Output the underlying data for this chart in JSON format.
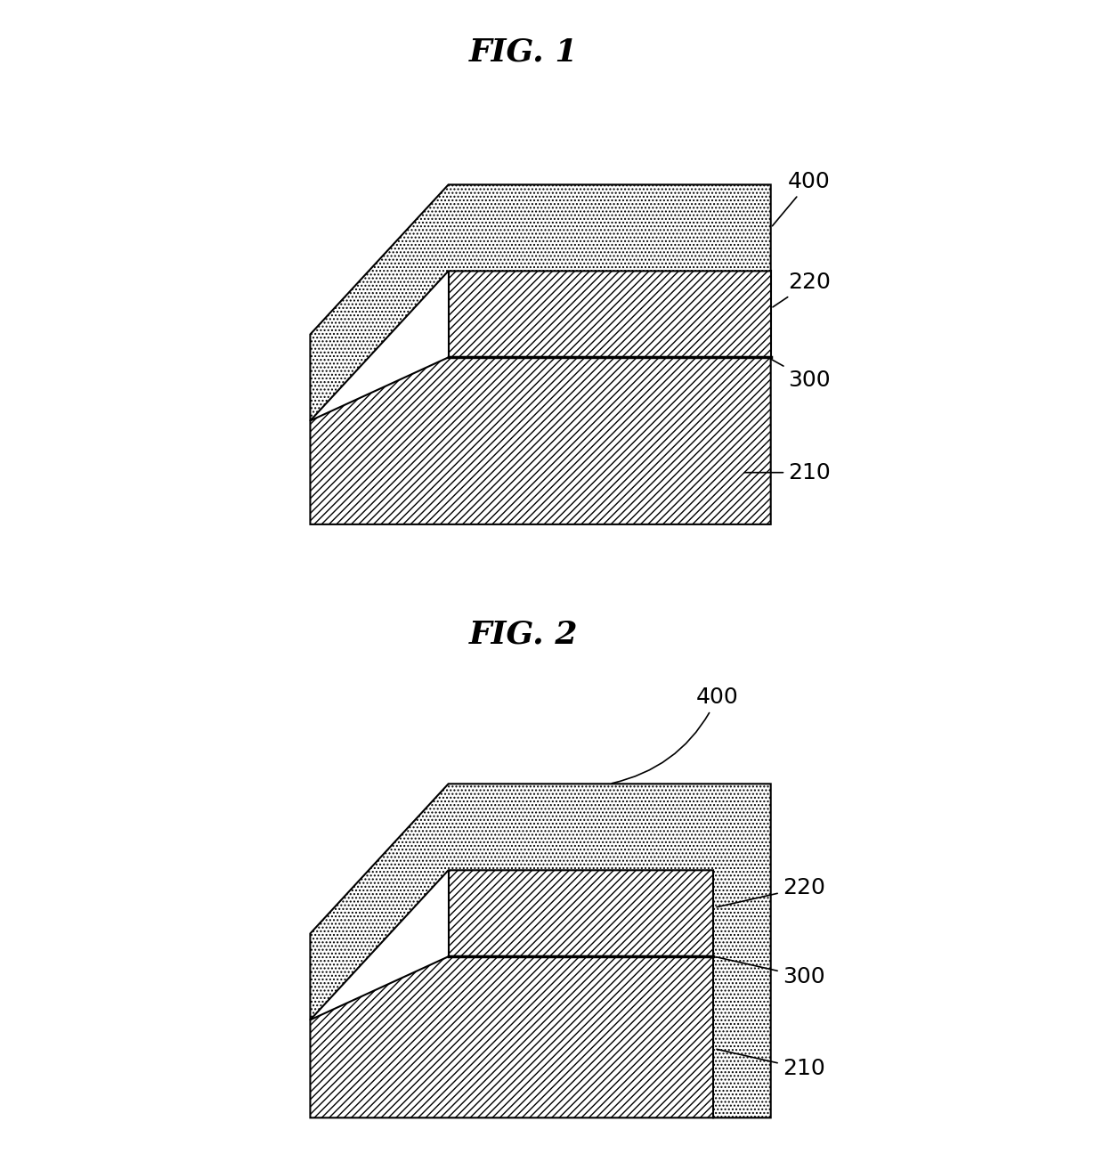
{
  "fig1_title": "FIG. 1",
  "fig2_title": "FIG. 2",
  "background_color": "#ffffff",
  "layer_edge_color": "#000000",
  "layer_linewidth": 1.5,
  "label_fontsize": 18,
  "title_fontsize": 26
}
